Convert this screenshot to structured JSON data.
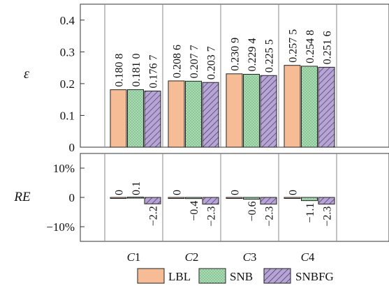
{
  "colors": {
    "LBL": "#F6BC95",
    "SNB": "#A7DCB2",
    "SNBFG": "#B6A4D4",
    "axis": "#333333",
    "divider": "#888888"
  },
  "chart_data": [
    {
      "type": "bar",
      "ylabel": "ε",
      "ylim": [
        0,
        0.45
      ],
      "yticks": [
        0,
        0.1,
        0.2,
        0.3,
        0.4
      ],
      "ytick_labels": [
        "0",
        "0.1",
        "0.2",
        "0.3",
        "0.4"
      ],
      "categories": [
        "C1",
        "C2",
        "C3",
        "C4"
      ],
      "series": [
        {
          "name": "LBL",
          "values": [
            0.1808,
            0.2086,
            0.2309,
            0.2575
          ],
          "labels": [
            "0.180 8",
            "0.208 6",
            "0.230 9",
            "0.257 5"
          ]
        },
        {
          "name": "SNB",
          "values": [
            0.181,
            0.2077,
            0.2294,
            0.2548
          ],
          "labels": [
            "0.181 0",
            "0.207 7",
            "0.229 4",
            "0.254 8"
          ]
        },
        {
          "name": "SNBFG",
          "values": [
            0.1767,
            0.2037,
            0.2255,
            0.2516
          ],
          "labels": [
            "0.176 7",
            "0.203 7",
            "0.225 5",
            "0.251 6"
          ]
        }
      ]
    },
    {
      "type": "bar",
      "ylabel": "RE",
      "ylim": [
        -15,
        15
      ],
      "yticks": [
        10,
        0,
        -10
      ],
      "ytick_labels": [
        "10%",
        "0",
        "−10%"
      ],
      "categories": [
        "C1",
        "C2",
        "C3",
        "C4"
      ],
      "series": [
        {
          "name": "LBL",
          "values": [
            0,
            0,
            0,
            0
          ],
          "labels": [
            "0",
            "0",
            "0",
            "0"
          ]
        },
        {
          "name": "SNB",
          "values": [
            0.1,
            -0.4,
            -0.6,
            -1.1
          ],
          "labels": [
            "0.1",
            "−0.4",
            "−0.6",
            "−1.1"
          ]
        },
        {
          "name": "SNBFG",
          "values": [
            -2.2,
            -2.3,
            -2.3,
            -2.3
          ],
          "labels": [
            "−2.2",
            "−2.3",
            "−2.3",
            "−2.3"
          ]
        }
      ]
    }
  ],
  "x_labels": [
    {
      "letter": "C",
      "number": "1"
    },
    {
      "letter": "C",
      "number": "2"
    },
    {
      "letter": "C",
      "number": "3"
    },
    {
      "letter": "C",
      "number": "4"
    }
  ],
  "legend": {
    "placement": "bottom",
    "items": [
      "LBL",
      "SNB",
      "SNBFG"
    ]
  }
}
